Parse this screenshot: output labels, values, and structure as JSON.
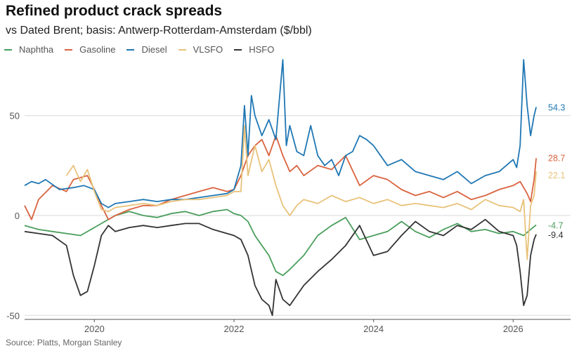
{
  "header": {
    "title": "Refined product crack spreads",
    "subtitle": "vs Dated Brent; basis: Antwerp-Rotterdam-Amsterdam ($/bbl)"
  },
  "footer": {
    "source": "Source: Platts, Morgan Stanley"
  },
  "chart_data": {
    "type": "line",
    "title": "Refined product crack spreads",
    "subtitle": "vs Dated Brent; basis: Antwerp-Rotterdam-Amsterdam ($/bbl)",
    "xlabel": "",
    "ylabel": "",
    "xlim": [
      2019.0,
      2026.45
    ],
    "ylim": [
      -52,
      78
    ],
    "yticks": [
      -50,
      0,
      50
    ],
    "xticks": [
      2020,
      2022,
      2024,
      2026
    ],
    "grid": "horizontal",
    "legend_position": "top-left",
    "series": [
      {
        "name": "Naphtha",
        "color": "#4a9e5c",
        "end_label": "-4.7",
        "x": [
          2019.0,
          2019.2,
          2019.4,
          2019.6,
          2019.8,
          2020.0,
          2020.15,
          2020.3,
          2020.5,
          2020.7,
          2020.9,
          2021.1,
          2021.3,
          2021.5,
          2021.7,
          2021.9,
          2022.0,
          2022.1,
          2022.2,
          2022.3,
          2022.4,
          2022.5,
          2022.6,
          2022.7,
          2022.8,
          2023.0,
          2023.2,
          2023.4,
          2023.6,
          2023.8,
          2024.0,
          2024.2,
          2024.4,
          2024.6,
          2024.8,
          2025.0,
          2025.2,
          2025.4,
          2025.6,
          2025.8,
          2026.0,
          2026.15,
          2026.25,
          2026.33
        ],
        "y": [
          -5,
          -7,
          -8,
          -9,
          -10,
          -6,
          -3,
          0,
          2,
          0,
          -1,
          1,
          2,
          0,
          2,
          3,
          1,
          0,
          -3,
          -10,
          -15,
          -20,
          -28,
          -30,
          -27,
          -20,
          -10,
          -5,
          -1,
          -12,
          -10,
          -8,
          -3,
          -8,
          -11,
          -7,
          -4,
          -8,
          -7,
          -9,
          -8,
          -10,
          -7,
          -4.7
        ]
      },
      {
        "name": "Gasoline",
        "color": "#d9633f",
        "end_label": "28.7",
        "x": [
          2019.0,
          2019.1,
          2019.2,
          2019.4,
          2019.6,
          2019.7,
          2019.9,
          2020.0,
          2020.1,
          2020.2,
          2020.3,
          2020.5,
          2020.7,
          2020.9,
          2021.1,
          2021.3,
          2021.5,
          2021.7,
          2021.9,
          2022.0,
          2022.1,
          2022.2,
          2022.3,
          2022.4,
          2022.5,
          2022.6,
          2022.7,
          2022.8,
          2022.9,
          2023.0,
          2023.2,
          2023.4,
          2023.6,
          2023.8,
          2024.0,
          2024.2,
          2024.4,
          2024.6,
          2024.8,
          2025.0,
          2025.2,
          2025.4,
          2025.6,
          2025.8,
          2026.0,
          2026.1,
          2026.2,
          2026.25,
          2026.3,
          2026.33
        ],
        "y": [
          5,
          -2,
          8,
          15,
          12,
          18,
          20,
          13,
          5,
          -2,
          0,
          3,
          5,
          5,
          8,
          10,
          12,
          14,
          12,
          13,
          20,
          30,
          35,
          38,
          30,
          40,
          30,
          22,
          25,
          20,
          25,
          23,
          30,
          15,
          20,
          18,
          13,
          10,
          12,
          9,
          12,
          8,
          10,
          13,
          15,
          17,
          11,
          7,
          18,
          28.7
        ]
      },
      {
        "name": "Diesel",
        "color": "#1f77b4",
        "end_label": "54.3",
        "x": [
          2019.0,
          2019.1,
          2019.2,
          2019.3,
          2019.5,
          2019.7,
          2019.85,
          2020.0,
          2020.1,
          2020.2,
          2020.3,
          2020.5,
          2020.7,
          2020.9,
          2021.1,
          2021.3,
          2021.5,
          2021.7,
          2021.9,
          2022.0,
          2022.1,
          2022.15,
          2022.2,
          2022.25,
          2022.3,
          2022.4,
          2022.5,
          2022.6,
          2022.7,
          2022.75,
          2022.8,
          2022.9,
          2023.0,
          2023.1,
          2023.2,
          2023.3,
          2023.4,
          2023.5,
          2023.6,
          2023.7,
          2023.8,
          2023.9,
          2024.0,
          2024.2,
          2024.4,
          2024.6,
          2024.8,
          2025.0,
          2025.2,
          2025.4,
          2025.6,
          2025.8,
          2026.0,
          2026.05,
          2026.1,
          2026.15,
          2026.2,
          2026.25,
          2026.3,
          2026.33
        ],
        "y": [
          15,
          17,
          16,
          18,
          13,
          14,
          15,
          13,
          6,
          4,
          6,
          7,
          8,
          7,
          8,
          8,
          9,
          10,
          11,
          13,
          25,
          55,
          30,
          60,
          50,
          40,
          48,
          38,
          78,
          35,
          45,
          32,
          30,
          45,
          30,
          25,
          28,
          20,
          30,
          32,
          40,
          38,
          35,
          25,
          28,
          22,
          20,
          18,
          22,
          16,
          20,
          22,
          28,
          24,
          35,
          78,
          55,
          40,
          50,
          54.3
        ]
      },
      {
        "name": "VLSFO",
        "color": "#e8c27a",
        "end_label": "22.1",
        "x": [
          2019.6,
          2019.7,
          2019.8,
          2019.9,
          2020.0,
          2020.1,
          2020.2,
          2020.3,
          2020.5,
          2020.7,
          2020.9,
          2021.1,
          2021.3,
          2021.5,
          2021.7,
          2021.9,
          2022.0,
          2022.1,
          2022.15,
          2022.2,
          2022.3,
          2022.4,
          2022.5,
          2022.6,
          2022.7,
          2022.8,
          2022.9,
          2023.0,
          2023.2,
          2023.4,
          2023.6,
          2023.8,
          2024.0,
          2024.2,
          2024.4,
          2024.6,
          2024.8,
          2025.0,
          2025.2,
          2025.4,
          2025.6,
          2025.8,
          2026.0,
          2026.1,
          2026.15,
          2026.2,
          2026.25,
          2026.3,
          2026.33
        ],
        "y": [
          20,
          25,
          17,
          23,
          12,
          3,
          2,
          4,
          5,
          6,
          5,
          7,
          8,
          8,
          9,
          10,
          12,
          12,
          45,
          20,
          35,
          22,
          28,
          15,
          5,
          0,
          5,
          8,
          6,
          10,
          7,
          9,
          6,
          8,
          5,
          6,
          5,
          4,
          6,
          3,
          8,
          5,
          4,
          2,
          8,
          -22,
          5,
          10,
          22.1
        ]
      },
      {
        "name": "HSFO",
        "color": "#333333",
        "end_label": "-9.4",
        "x": [
          2019.0,
          2019.2,
          2019.4,
          2019.6,
          2019.7,
          2019.8,
          2019.9,
          2020.0,
          2020.1,
          2020.2,
          2020.3,
          2020.5,
          2020.7,
          2020.9,
          2021.1,
          2021.3,
          2021.5,
          2021.7,
          2021.9,
          2022.0,
          2022.1,
          2022.15,
          2022.2,
          2022.3,
          2022.4,
          2022.5,
          2022.55,
          2022.6,
          2022.7,
          2022.8,
          2023.0,
          2023.2,
          2023.4,
          2023.6,
          2023.8,
          2024.0,
          2024.2,
          2024.4,
          2024.6,
          2024.8,
          2025.0,
          2025.2,
          2025.4,
          2025.6,
          2025.8,
          2026.0,
          2026.05,
          2026.1,
          2026.15,
          2026.2,
          2026.25,
          2026.3,
          2026.33
        ],
        "y": [
          -8,
          -9,
          -10,
          -15,
          -30,
          -40,
          -38,
          -25,
          -10,
          -5,
          -8,
          -6,
          -5,
          -6,
          -5,
          -4,
          -4,
          -7,
          -9,
          -10,
          -12,
          -16,
          -20,
          -35,
          -42,
          -45,
          -50,
          -32,
          -42,
          -45,
          -35,
          -28,
          -22,
          -15,
          -5,
          -20,
          -18,
          -10,
          -3,
          -8,
          -10,
          -5,
          -7,
          -2,
          -8,
          -10,
          -15,
          -28,
          -45,
          -40,
          -20,
          -12,
          -9.4
        ]
      }
    ]
  }
}
